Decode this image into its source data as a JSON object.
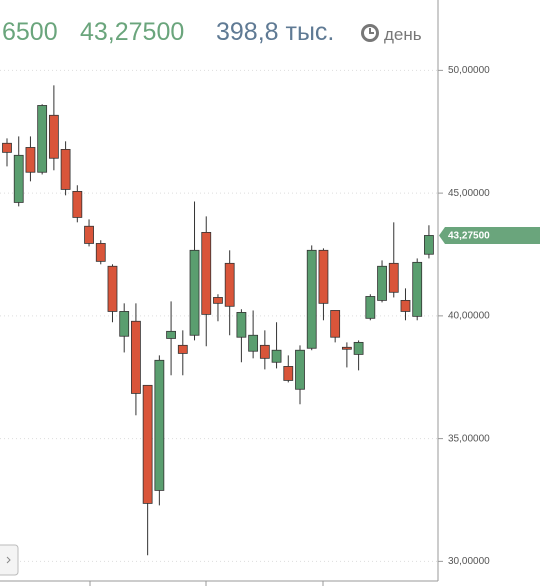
{
  "chart_data": {
    "type": "candlestick",
    "header": [
      "6500",
      "43,27500",
      "398,8 тыс."
    ],
    "period_label": "день",
    "last_price_label": "43,27500",
    "up_color": "#5a9e6f",
    "down_color": "#d9553a",
    "open": [
      47.03,
      44.62,
      46.86,
      45.85,
      48.17,
      46.78,
      45.07,
      43.65,
      42.95,
      42.02,
      39.17,
      39.78,
      37.17,
      32.89,
      39.08,
      38.8,
      39.21,
      43.4,
      40.75,
      42.14,
      39.13,
      38.56,
      38.8,
      38.11,
      37.94,
      37.01,
      38.68,
      42.67,
      40.22,
      38.72,
      38.43,
      39.9,
      40.63,
      42.14,
      40.63,
      39.98,
      42.51
    ],
    "high": [
      47.23,
      47.31,
      47.31,
      48.62,
      49.39,
      47.11,
      45.32,
      43.93,
      43.08,
      42.1,
      40.51,
      40.51,
      37.17,
      38.39,
      40.59,
      39.41,
      44.66,
      44.05,
      40.88,
      42.67,
      40.27,
      40.22,
      39.41,
      39.74,
      38.39,
      38.8,
      42.87,
      42.75,
      40.22,
      38.92,
      39.0,
      40.88,
      42.26,
      43.81,
      41.12,
      42.34,
      43.69
    ],
    "low": [
      46.09,
      44.46,
      45.48,
      45.76,
      45.93,
      44.91,
      43.81,
      42.83,
      42.1,
      39.74,
      38.51,
      35.95,
      30.25,
      32.28,
      37.58,
      37.58,
      39.0,
      38.76,
      39.78,
      39.21,
      38.11,
      38.27,
      37.82,
      37.86,
      37.29,
      36.4,
      38.6,
      39.82,
      38.92,
      37.9,
      37.78,
      39.82,
      40.55,
      40.75,
      39.82,
      39.82,
      42.34
    ],
    "close": [
      46.66,
      46.54,
      45.85,
      48.57,
      46.42,
      45.15,
      44.01,
      42.95,
      42.22,
      40.18,
      40.18,
      36.84,
      32.36,
      38.19,
      39.37,
      38.47,
      42.67,
      40.06,
      40.51,
      40.39,
      40.14,
      39.21,
      38.27,
      38.6,
      37.37,
      38.6,
      42.67,
      40.51,
      39.13,
      38.64,
      38.92,
      40.79,
      42.02,
      40.96,
      40.18,
      42.18,
      43.275
    ],
    "ylim": [
      29.2,
      52.85
    ],
    "yticks": [
      {
        "value": 30,
        "label": "30,00000"
      },
      {
        "value": 35,
        "label": "35,00000"
      },
      {
        "value": 40,
        "label": "40,00000"
      },
      {
        "value": 45,
        "label": "45,00000"
      },
      {
        "value": 50,
        "label": "50,00000"
      }
    ],
    "grid": true
  }
}
